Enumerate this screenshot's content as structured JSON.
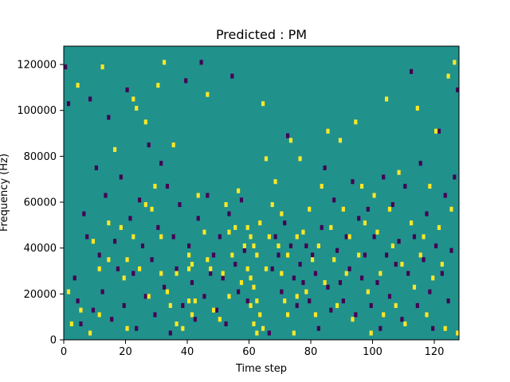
{
  "chart_data": {
    "type": "heatmap",
    "title": "Predicted : PM",
    "xlabel": "Time step",
    "ylabel": "Frequency (Hz)",
    "xlim": [
      0,
      128
    ],
    "ylim": [
      0,
      128000
    ],
    "xticks": [
      0,
      20,
      40,
      60,
      80,
      100,
      120
    ],
    "yticks": [
      0,
      20000,
      40000,
      60000,
      80000,
      100000,
      120000
    ],
    "xtick_labels": [
      "0",
      "20",
      "40",
      "60",
      "80",
      "100",
      "120"
    ],
    "ytick_labels": [
      "0",
      "20000",
      "40000",
      "60000",
      "80000",
      "100000",
      "120000"
    ],
    "grid": false,
    "n_time_steps": 128,
    "n_frequency_bins": 64,
    "frequency_bin_width_hz": 2000,
    "value_levels": [
      -1,
      0,
      1
    ],
    "colormap": {
      "-1": "#440154",
      "0": "#21918c",
      "1": "#fde725"
    },
    "default_value": 0,
    "cells_high": [
      [
        1,
        20000
      ],
      [
        2,
        6000
      ],
      [
        4,
        110000
      ],
      [
        5,
        12000
      ],
      [
        8,
        2000
      ],
      [
        9,
        42000
      ],
      [
        11,
        30000
      ],
      [
        11,
        10000
      ],
      [
        12,
        118000
      ],
      [
        14,
        50000
      ],
      [
        14,
        34000
      ],
      [
        16,
        82000
      ],
      [
        18,
        48000
      ],
      [
        19,
        26000
      ],
      [
        20,
        4000
      ],
      [
        20,
        34000
      ],
      [
        22,
        44000
      ],
      [
        22,
        104000
      ],
      [
        23,
        100000
      ],
      [
        24,
        30000
      ],
      [
        26,
        94000
      ],
      [
        26,
        58000
      ],
      [
        27,
        18000
      ],
      [
        28,
        56000
      ],
      [
        29,
        66000
      ],
      [
        30,
        110000
      ],
      [
        31,
        28000
      ],
      [
        31,
        44000
      ],
      [
        32,
        120000
      ],
      [
        33,
        20000
      ],
      [
        34,
        14000
      ],
      [
        35,
        84000
      ],
      [
        36,
        28000
      ],
      [
        36,
        6000
      ],
      [
        38,
        4000
      ],
      [
        40,
        36000
      ],
      [
        40,
        30000
      ],
      [
        40,
        16000
      ],
      [
        41,
        32000
      ],
      [
        41,
        10000
      ],
      [
        42,
        16000
      ],
      [
        43,
        62000
      ],
      [
        45,
        46000
      ],
      [
        46,
        34000
      ],
      [
        46,
        106000
      ],
      [
        47,
        30000
      ],
      [
        48,
        12000
      ],
      [
        50,
        8000
      ],
      [
        51,
        28000
      ],
      [
        52,
        58000
      ],
      [
        53,
        46000
      ],
      [
        53,
        18000
      ],
      [
        54,
        36000
      ],
      [
        55,
        48000
      ],
      [
        56,
        64000
      ],
      [
        57,
        24000
      ],
      [
        58,
        40000
      ],
      [
        59,
        48000
      ],
      [
        59,
        30000
      ],
      [
        60,
        44000
      ],
      [
        60,
        26000
      ],
      [
        60,
        14000
      ],
      [
        61,
        40000
      ],
      [
        61,
        22000
      ],
      [
        61,
        6000
      ],
      [
        62,
        36000
      ],
      [
        62,
        16000
      ],
      [
        62,
        2000
      ],
      [
        63,
        50000
      ],
      [
        63,
        10000
      ],
      [
        64,
        102000
      ],
      [
        64,
        4000
      ],
      [
        65,
        78000
      ],
      [
        65,
        30000
      ],
      [
        66,
        44000
      ],
      [
        67,
        58000
      ],
      [
        68,
        68000
      ],
      [
        69,
        40000
      ],
      [
        70,
        54000
      ],
      [
        70,
        28000
      ],
      [
        71,
        16000
      ],
      [
        72,
        36000
      ],
      [
        72,
        10000
      ],
      [
        73,
        86000
      ],
      [
        74,
        2000
      ],
      [
        75,
        44000
      ],
      [
        75,
        18000
      ],
      [
        76,
        78000
      ],
      [
        77,
        46000
      ],
      [
        78,
        20000
      ],
      [
        79,
        56000
      ],
      [
        80,
        34000
      ],
      [
        81,
        10000
      ],
      [
        82,
        40000
      ],
      [
        83,
        66000
      ],
      [
        84,
        24000
      ],
      [
        85,
        90000
      ],
      [
        86,
        48000
      ],
      [
        87,
        34000
      ],
      [
        88,
        14000
      ],
      [
        89,
        86000
      ],
      [
        90,
        56000
      ],
      [
        91,
        28000
      ],
      [
        92,
        44000
      ],
      [
        93,
        8000
      ],
      [
        94,
        94000
      ],
      [
        95,
        36000
      ],
      [
        96,
        66000
      ],
      [
        97,
        50000
      ],
      [
        98,
        20000
      ],
      [
        99,
        2000
      ],
      [
        100,
        62000
      ],
      [
        101,
        46000
      ],
      [
        102,
        28000
      ],
      [
        103,
        10000
      ],
      [
        104,
        104000
      ],
      [
        105,
        56000
      ],
      [
        106,
        40000
      ],
      [
        107,
        14000
      ],
      [
        108,
        72000
      ],
      [
        109,
        32000
      ],
      [
        110,
        6000
      ],
      [
        112,
        50000
      ],
      [
        113,
        22000
      ],
      [
        114,
        100000
      ],
      [
        115,
        36000
      ],
      [
        116,
        44000
      ],
      [
        117,
        10000
      ],
      [
        118,
        66000
      ],
      [
        119,
        26000
      ],
      [
        120,
        90000
      ],
      [
        121,
        48000
      ],
      [
        122,
        32000
      ],
      [
        123,
        4000
      ],
      [
        124,
        114000
      ],
      [
        125,
        56000
      ],
      [
        126,
        120000
      ],
      [
        127,
        2000
      ]
    ],
    "cells_low": [
      [
        0,
        118000
      ],
      [
        1,
        102000
      ],
      [
        3,
        26000
      ],
      [
        4,
        16000
      ],
      [
        5,
        6000
      ],
      [
        6,
        54000
      ],
      [
        7,
        44000
      ],
      [
        8,
        104000
      ],
      [
        9,
        12000
      ],
      [
        10,
        74000
      ],
      [
        11,
        36000
      ],
      [
        12,
        20000
      ],
      [
        13,
        62000
      ],
      [
        14,
        96000
      ],
      [
        15,
        8000
      ],
      [
        16,
        42000
      ],
      [
        17,
        30000
      ],
      [
        18,
        70000
      ],
      [
        19,
        14000
      ],
      [
        20,
        108000
      ],
      [
        21,
        52000
      ],
      [
        22,
        28000
      ],
      [
        23,
        4000
      ],
      [
        24,
        60000
      ],
      [
        25,
        40000
      ],
      [
        26,
        18000
      ],
      [
        27,
        84000
      ],
      [
        28,
        34000
      ],
      [
        29,
        10000
      ],
      [
        30,
        48000
      ],
      [
        31,
        76000
      ],
      [
        32,
        22000
      ],
      [
        33,
        66000
      ],
      [
        34,
        2000
      ],
      [
        35,
        44000
      ],
      [
        36,
        30000
      ],
      [
        37,
        58000
      ],
      [
        38,
        14000
      ],
      [
        39,
        112000
      ],
      [
        40,
        40000
      ],
      [
        41,
        24000
      ],
      [
        42,
        8000
      ],
      [
        43,
        52000
      ],
      [
        44,
        120000
      ],
      [
        45,
        18000
      ],
      [
        46,
        62000
      ],
      [
        47,
        28000
      ],
      [
        48,
        36000
      ],
      [
        49,
        12000
      ],
      [
        50,
        44000
      ],
      [
        51,
        26000
      ],
      [
        52,
        6000
      ],
      [
        53,
        54000
      ],
      [
        54,
        114000
      ],
      [
        55,
        32000
      ],
      [
        56,
        20000
      ],
      [
        57,
        60000
      ],
      [
        58,
        38000
      ],
      [
        59,
        16000
      ],
      [
        66,
        2000
      ],
      [
        67,
        30000
      ],
      [
        68,
        44000
      ],
      [
        69,
        36000
      ],
      [
        70,
        20000
      ],
      [
        71,
        50000
      ],
      [
        72,
        88000
      ],
      [
        73,
        40000
      ],
      [
        74,
        26000
      ],
      [
        75,
        14000
      ],
      [
        76,
        32000
      ],
      [
        77,
        24000
      ],
      [
        78,
        40000
      ],
      [
        79,
        16000
      ],
      [
        80,
        36000
      ],
      [
        81,
        28000
      ],
      [
        82,
        4000
      ],
      [
        83,
        48000
      ],
      [
        84,
        74000
      ],
      [
        85,
        22000
      ],
      [
        86,
        12000
      ],
      [
        87,
        60000
      ],
      [
        88,
        38000
      ],
      [
        89,
        24000
      ],
      [
        90,
        16000
      ],
      [
        91,
        44000
      ],
      [
        92,
        30000
      ],
      [
        93,
        68000
      ],
      [
        94,
        10000
      ],
      [
        95,
        52000
      ],
      [
        96,
        26000
      ],
      [
        97,
        36000
      ],
      [
        98,
        56000
      ],
      [
        99,
        14000
      ],
      [
        100,
        44000
      ],
      [
        101,
        24000
      ],
      [
        102,
        4000
      ],
      [
        103,
        70000
      ],
      [
        104,
        36000
      ],
      [
        105,
        18000
      ],
      [
        106,
        58000
      ],
      [
        107,
        32000
      ],
      [
        108,
        42000
      ],
      [
        109,
        8000
      ],
      [
        110,
        66000
      ],
      [
        111,
        28000
      ],
      [
        112,
        116000
      ],
      [
        113,
        44000
      ],
      [
        114,
        14000
      ],
      [
        115,
        76000
      ],
      [
        116,
        34000
      ],
      [
        117,
        54000
      ],
      [
        118,
        20000
      ],
      [
        119,
        4000
      ],
      [
        120,
        40000
      ],
      [
        121,
        90000
      ],
      [
        122,
        28000
      ],
      [
        123,
        62000
      ],
      [
        124,
        16000
      ],
      [
        125,
        38000
      ],
      [
        126,
        70000
      ],
      [
        127,
        108000
      ]
    ]
  }
}
